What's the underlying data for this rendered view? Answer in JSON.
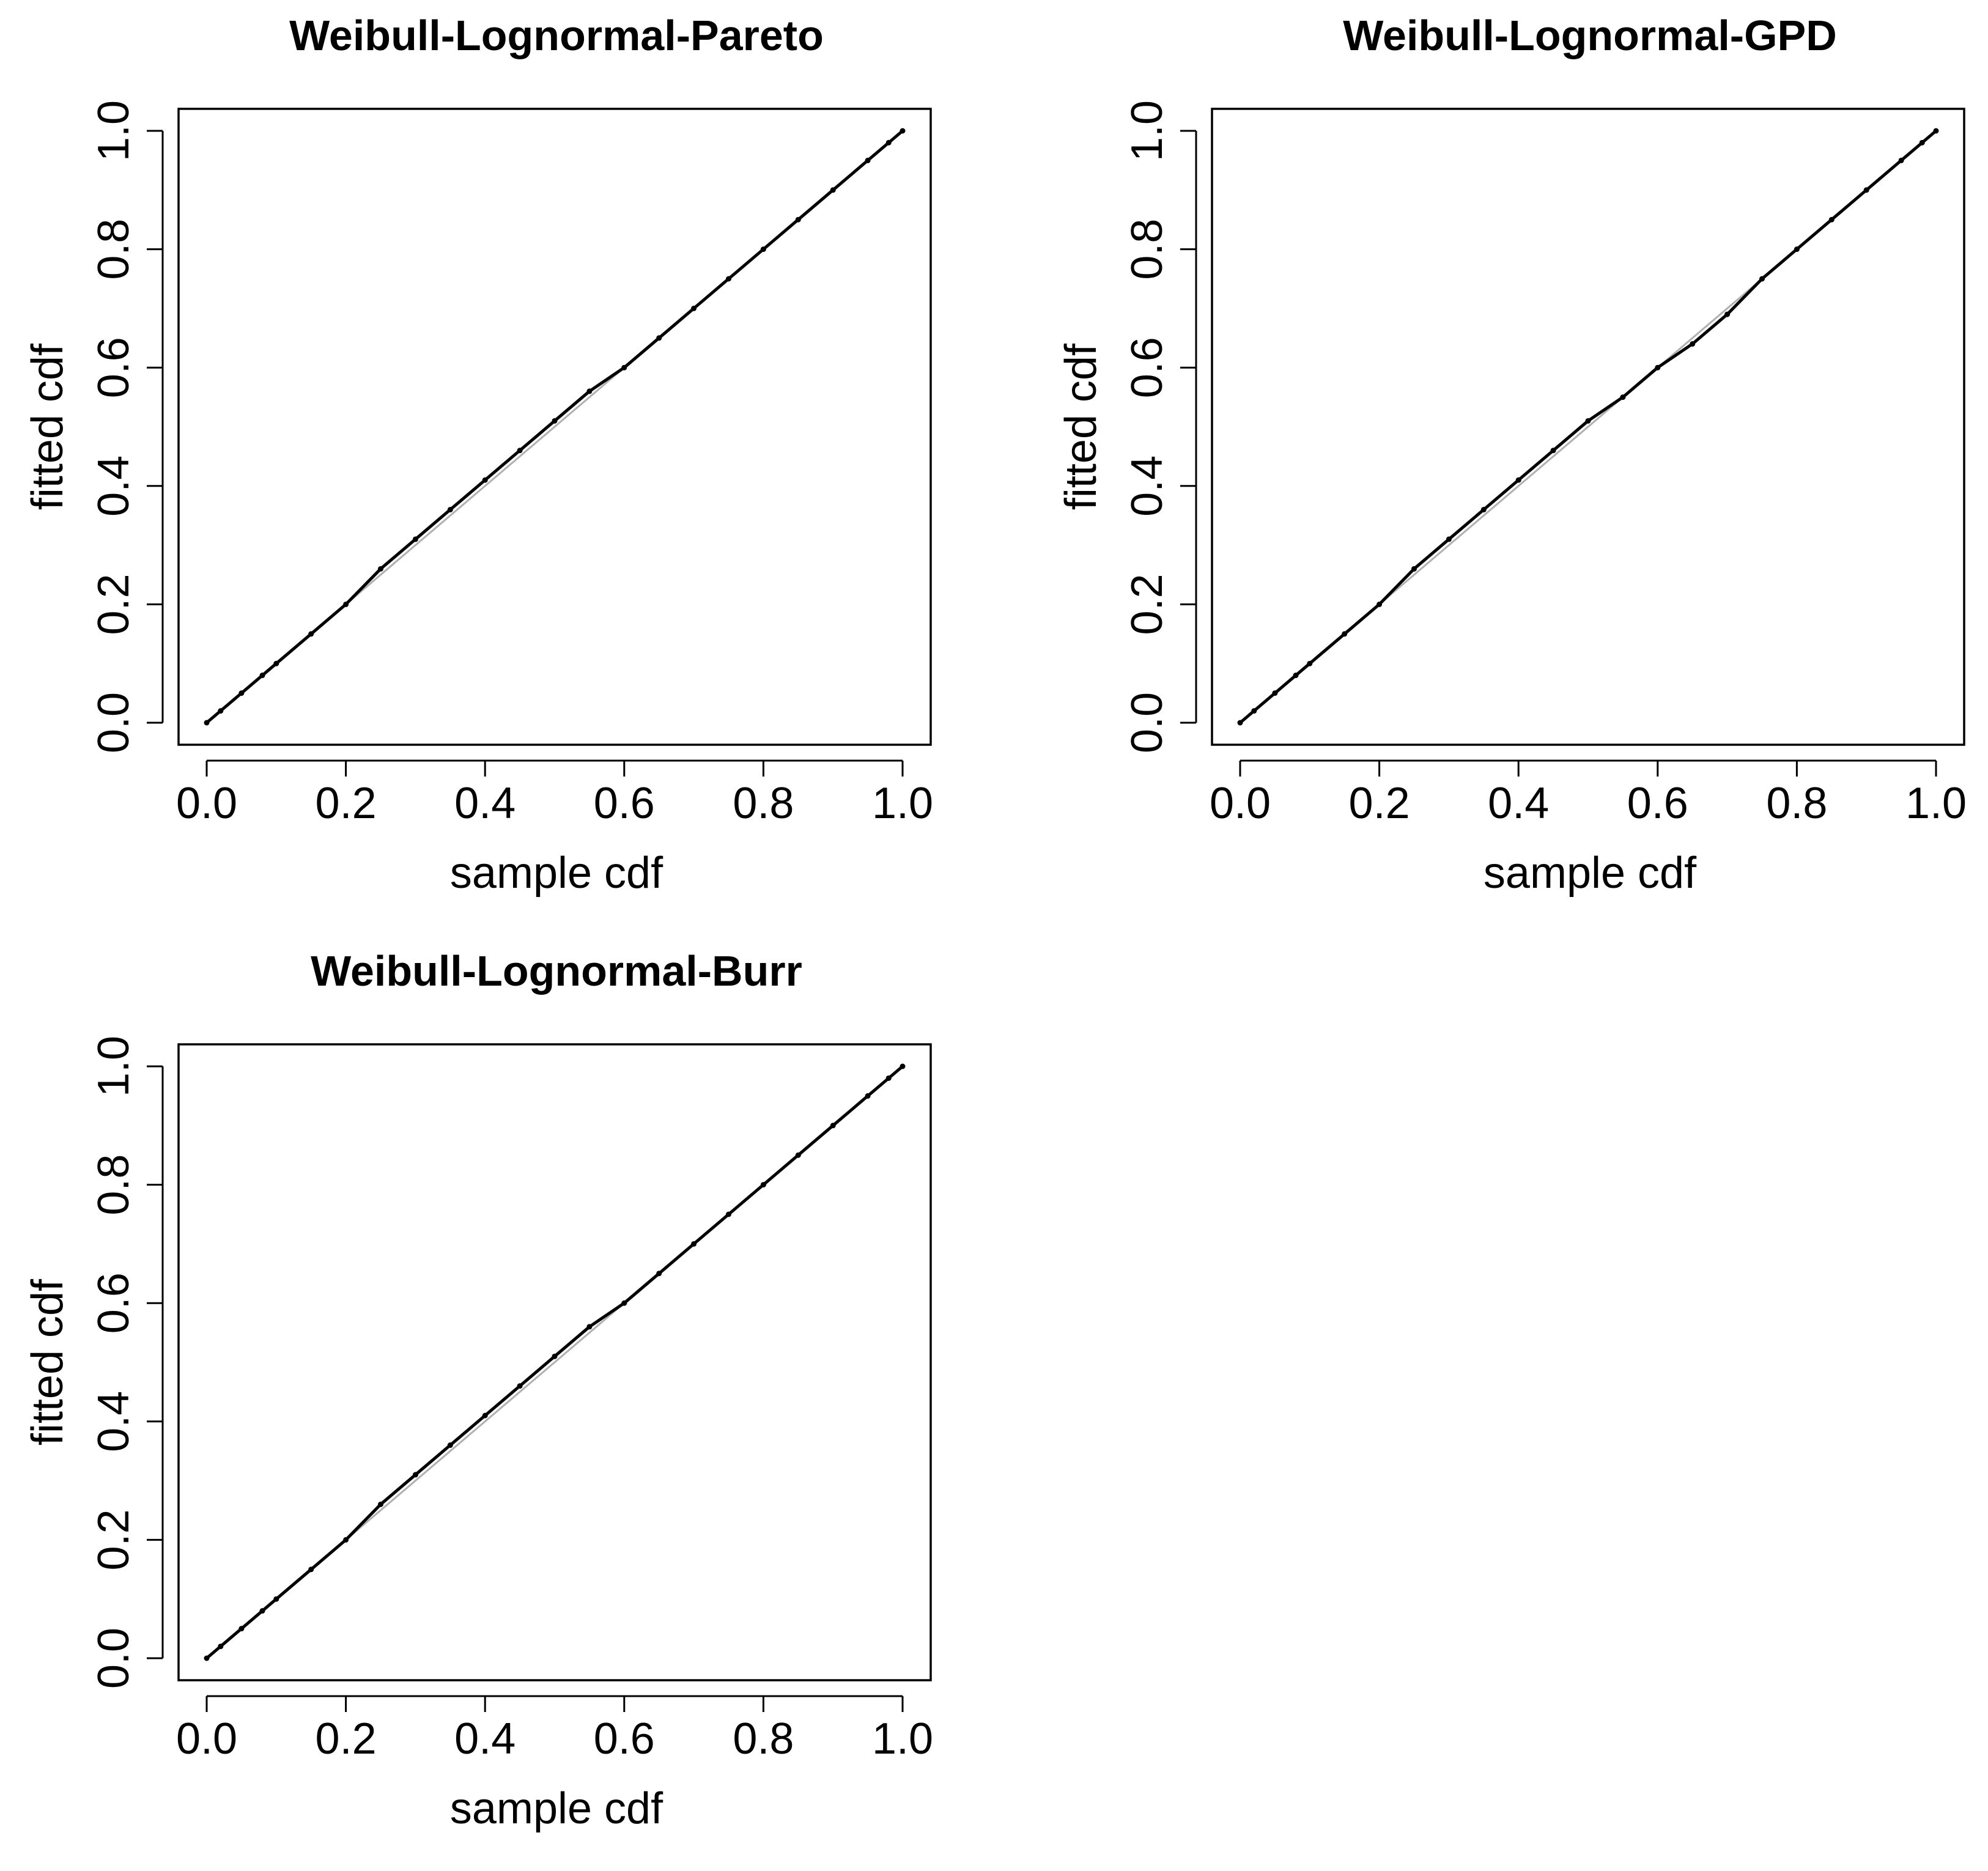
{
  "chart_data": [
    {
      "type": "scatter",
      "title": "Weibull-Lognormal-Pareto",
      "xlabel": "sample cdf",
      "ylabel": "fitted cdf",
      "xlim": [
        0,
        1
      ],
      "ylim": [
        0,
        1
      ],
      "xticks": [
        "0.0",
        "0.2",
        "0.4",
        "0.6",
        "0.8",
        "1.0"
      ],
      "yticks": [
        "0.0",
        "0.2",
        "0.4",
        "0.6",
        "0.8",
        "1.0"
      ],
      "grid": false,
      "series": [
        {
          "color": "#000000",
          "x": [
            0.0,
            0.02,
            0.05,
            0.08,
            0.1,
            0.15,
            0.2,
            0.25,
            0.3,
            0.35,
            0.4,
            0.45,
            0.5,
            0.55,
            0.6,
            0.65,
            0.7,
            0.75,
            0.8,
            0.85,
            0.9,
            0.95,
            0.98,
            1.0
          ],
          "y": [
            0.0,
            0.02,
            0.05,
            0.08,
            0.1,
            0.15,
            0.2,
            0.26,
            0.31,
            0.36,
            0.41,
            0.46,
            0.51,
            0.56,
            0.6,
            0.65,
            0.7,
            0.75,
            0.8,
            0.85,
            0.9,
            0.95,
            0.98,
            1.0
          ]
        }
      ]
    },
    {
      "type": "scatter",
      "title": "Weibull-Lognormal-GPD",
      "xlabel": "sample cdf",
      "ylabel": "fitted cdf",
      "xlim": [
        0,
        1
      ],
      "ylim": [
        0,
        1
      ],
      "xticks": [
        "0.0",
        "0.2",
        "0.4",
        "0.6",
        "0.8",
        "1.0"
      ],
      "yticks": [
        "0.0",
        "0.2",
        "0.4",
        "0.6",
        "0.8",
        "1.0"
      ],
      "grid": false,
      "series": [
        {
          "color": "#000000",
          "x": [
            0.0,
            0.02,
            0.05,
            0.08,
            0.1,
            0.15,
            0.2,
            0.25,
            0.3,
            0.35,
            0.4,
            0.45,
            0.5,
            0.55,
            0.6,
            0.65,
            0.7,
            0.75,
            0.8,
            0.85,
            0.9,
            0.95,
            0.98,
            1.0
          ],
          "y": [
            0.0,
            0.02,
            0.05,
            0.08,
            0.1,
            0.15,
            0.2,
            0.26,
            0.31,
            0.36,
            0.41,
            0.46,
            0.51,
            0.55,
            0.6,
            0.64,
            0.69,
            0.75,
            0.8,
            0.85,
            0.9,
            0.95,
            0.98,
            1.0
          ]
        }
      ]
    },
    {
      "type": "scatter",
      "title": "Weibull-Lognormal-Burr",
      "xlabel": "sample cdf",
      "ylabel": "fitted cdf",
      "xlim": [
        0,
        1
      ],
      "ylim": [
        0,
        1
      ],
      "xticks": [
        "0.0",
        "0.2",
        "0.4",
        "0.6",
        "0.8",
        "1.0"
      ],
      "yticks": [
        "0.0",
        "0.2",
        "0.4",
        "0.6",
        "0.8",
        "1.0"
      ],
      "grid": false,
      "series": [
        {
          "color": "#000000",
          "x": [
            0.0,
            0.02,
            0.05,
            0.08,
            0.1,
            0.15,
            0.2,
            0.25,
            0.3,
            0.35,
            0.4,
            0.45,
            0.5,
            0.55,
            0.6,
            0.65,
            0.7,
            0.75,
            0.8,
            0.85,
            0.9,
            0.95,
            0.98,
            1.0
          ],
          "y": [
            0.0,
            0.02,
            0.05,
            0.08,
            0.1,
            0.15,
            0.2,
            0.26,
            0.31,
            0.36,
            0.41,
            0.46,
            0.51,
            0.56,
            0.6,
            0.65,
            0.7,
            0.75,
            0.8,
            0.85,
            0.9,
            0.95,
            0.98,
            1.0
          ]
        }
      ]
    }
  ]
}
